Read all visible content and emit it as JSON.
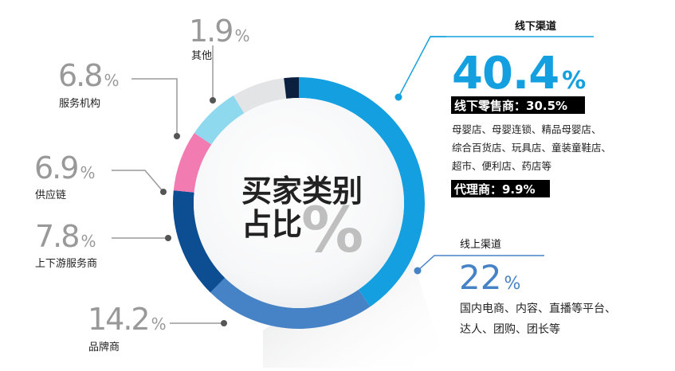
{
  "chart_data": {
    "type": "donut",
    "center_title_line1": "买家类别",
    "center_title_line2": "占比",
    "center_symbol": "%",
    "slices": [
      {
        "key": "offline",
        "value": 40.4,
        "label": "线下渠道",
        "color": "#14a0e0"
      },
      {
        "key": "online",
        "value": 22.0,
        "label": "线上渠道",
        "color": "#4683c6"
      },
      {
        "key": "brand",
        "value": 14.2,
        "label": "品牌商",
        "color": "#0d4d92"
      },
      {
        "key": "updown",
        "value": 7.8,
        "label": "上下游服务商",
        "color": "#f27bb1"
      },
      {
        "key": "supply",
        "value": 6.9,
        "label": "供应链",
        "color": "#8fd9ef"
      },
      {
        "key": "service",
        "value": 6.8,
        "label": "服务机构",
        "color": "#e3e4e6"
      },
      {
        "key": "other",
        "value": 1.9,
        "label": "其他",
        "color": "#0d1f3f"
      }
    ]
  },
  "labels": {
    "offline": {
      "title": "线下渠道",
      "value": "40.4",
      "pct": "%",
      "retail": "线下零售商：30.5%",
      "retail_detail_1": "母婴店、母婴连锁、精品母婴店、",
      "retail_detail_2": "综合百货店、玩具店、童装童鞋店、",
      "retail_detail_3": "超市、便利店、药店等",
      "agent": "代理商：9.9%"
    },
    "online": {
      "title": "线上渠道",
      "value": "22",
      "pct": "%",
      "detail_1": "国内电商、内容、直播等平台、",
      "detail_2": "达人、团购、团长等"
    },
    "other": {
      "value": "1.9",
      "pct": "%",
      "name": "其他"
    },
    "service": {
      "value": "6.8",
      "pct": "%",
      "name": "服务机构"
    },
    "supply": {
      "value": "6.9",
      "pct": "%",
      "name": "供应链"
    },
    "updown": {
      "value": "7.8",
      "pct": "%",
      "name": "上下游服务商"
    },
    "brand": {
      "value": "14.2",
      "pct": "%",
      "name": "品牌商"
    }
  },
  "colors": {
    "accent": "#14a0e0",
    "leader": "#9a9a9a",
    "text": "#222222",
    "value_gray": "#999999"
  }
}
